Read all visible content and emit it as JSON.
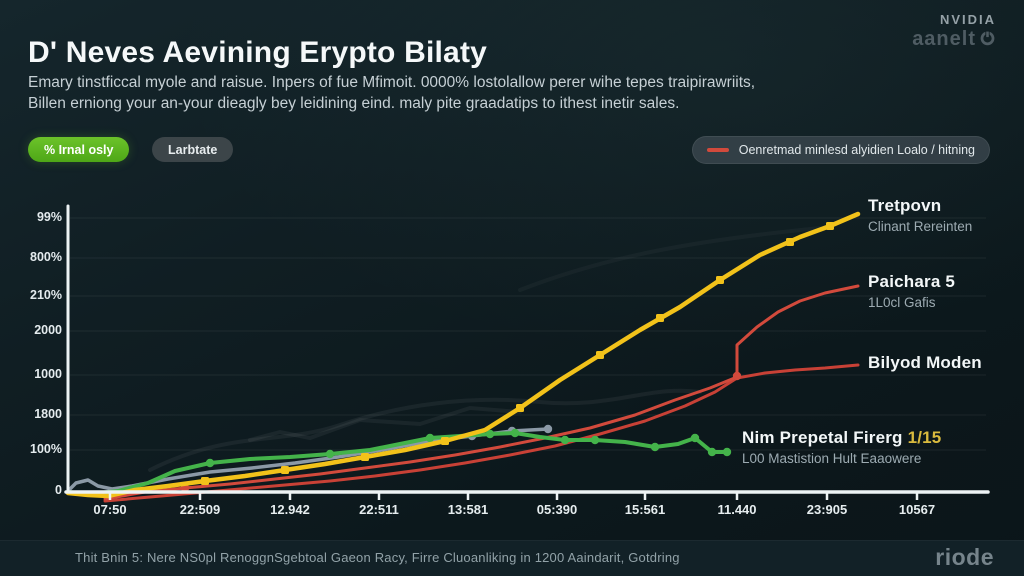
{
  "header": {
    "title": "D' Neves Aevining Erypto Bilaty",
    "subtitle_line1": "Emary tinstficcal myole and raisue. Inpers of fue Mfimoit. 0000% lostolallow perer wihe tepes traipirawriits,",
    "subtitle_line2": "Billen erniong your an-your dieagly bey leidining eind. maly pite graadatips to ithest inetir sales.",
    "brand_top": "NVIDIA",
    "brand_name": "aanelt"
  },
  "controls": {
    "primary_label": "% Irnal osly",
    "secondary_label": "Larbtate",
    "legend_label": "Oenretmad minlesd alyidien Loalo / hitning"
  },
  "colors": {
    "accent_green": "#5cb81f",
    "legend_red": "#d24a3c",
    "background": "#101e23"
  },
  "chart_data": {
    "type": "line",
    "grid": true,
    "legend_position": "top-right",
    "y_tick_labels": [
      "99%",
      "800%",
      "210%",
      "2000",
      "1000",
      "1800",
      "100%",
      "0"
    ],
    "x_tick_labels": [
      "07:50",
      "22:509",
      "12.942",
      "22:511",
      "13:581",
      "05:390",
      "15:561",
      "11.440",
      "23:905",
      "10567"
    ],
    "annotations": [
      {
        "title": "Tretpovn",
        "subtitle": "Clinant Rereinten"
      },
      {
        "title": "Paichara 5",
        "subtitle": "1L0cl Gafis"
      },
      {
        "title": "Bilyod Moden",
        "subtitle": ""
      },
      {
        "title": "Nim Prepetal Firerg",
        "badge": "1/15",
        "subtitle": "L00 Mastistion Hult Eaaowere"
      }
    ],
    "series": [
      {
        "id": "slate",
        "name": "unlabeled-gray-series",
        "color": "#8b99a6",
        "width": 3.5,
        "marker": "circle",
        "points": [
          [
            68,
            491
          ],
          [
            76,
            483
          ],
          [
            88,
            480
          ],
          [
            98,
            486
          ],
          [
            112,
            489
          ],
          [
            132,
            486
          ],
          [
            168,
            479
          ],
          [
            210,
            472
          ],
          [
            252,
            468
          ],
          [
            295,
            463
          ],
          [
            338,
            457
          ],
          [
            382,
            450
          ],
          [
            425,
            442
          ],
          [
            455,
            438
          ],
          [
            472,
            436
          ],
          [
            512,
            431
          ],
          [
            548,
            429
          ]
        ],
        "markers": [
          [
            472,
            436
          ],
          [
            512,
            431
          ],
          [
            548,
            429
          ]
        ]
      },
      {
        "id": "bilyod",
        "name": "Bilyod Moden",
        "color": "#c84136",
        "width": 3,
        "marker": "none",
        "points": [
          [
            105,
            501
          ],
          [
            150,
            497
          ],
          [
            195,
            493
          ],
          [
            240,
            489
          ],
          [
            285,
            485
          ],
          [
            330,
            481
          ],
          [
            375,
            476
          ],
          [
            420,
            470
          ],
          [
            465,
            463
          ],
          [
            510,
            455
          ],
          [
            555,
            446
          ],
          [
            600,
            434
          ],
          [
            645,
            421
          ],
          [
            685,
            406
          ],
          [
            715,
            392
          ],
          [
            737,
            378
          ],
          [
            765,
            373
          ],
          [
            795,
            370
          ],
          [
            825,
            368
          ],
          [
            858,
            365
          ]
        ],
        "markers": []
      },
      {
        "id": "paichara",
        "name": "Paichara 5",
        "color": "#d24a3c",
        "width": 3,
        "marker": "circle",
        "points": [
          [
            105,
            499
          ],
          [
            145,
            492
          ],
          [
            185,
            488
          ],
          [
            230,
            484
          ],
          [
            275,
            479
          ],
          [
            320,
            474
          ],
          [
            365,
            468
          ],
          [
            410,
            462
          ],
          [
            455,
            455
          ],
          [
            500,
            447
          ],
          [
            545,
            438
          ],
          [
            590,
            428
          ],
          [
            635,
            415
          ],
          [
            675,
            400
          ],
          [
            710,
            388
          ],
          [
            737,
            377
          ],
          [
            737,
            345
          ],
          [
            757,
            327
          ],
          [
            778,
            312
          ],
          [
            800,
            301
          ],
          [
            825,
            293
          ],
          [
            858,
            286
          ]
        ],
        "markers": [
          [
            185,
            488
          ],
          [
            737,
            376
          ]
        ]
      },
      {
        "id": "nim",
        "name": "Nim Prepetal Firerg",
        "color": "#44b34a",
        "width": 4,
        "marker": "circle",
        "points": [
          [
            68,
            492
          ],
          [
            90,
            494
          ],
          [
            118,
            491
          ],
          [
            148,
            483
          ],
          [
            175,
            471
          ],
          [
            210,
            463
          ],
          [
            250,
            459
          ],
          [
            290,
            457
          ],
          [
            330,
            454
          ],
          [
            370,
            450
          ],
          [
            400,
            444
          ],
          [
            430,
            438
          ],
          [
            460,
            436
          ],
          [
            490,
            434
          ],
          [
            515,
            433
          ],
          [
            540,
            437
          ],
          [
            565,
            440
          ],
          [
            595,
            440
          ],
          [
            625,
            442
          ],
          [
            655,
            447
          ],
          [
            678,
            444
          ],
          [
            695,
            438
          ],
          [
            712,
            452
          ],
          [
            727,
            452
          ]
        ],
        "markers": [
          [
            210,
            463
          ],
          [
            330,
            454
          ],
          [
            430,
            438
          ],
          [
            490,
            434
          ],
          [
            515,
            433
          ],
          [
            565,
            440
          ],
          [
            595,
            440
          ],
          [
            655,
            447
          ],
          [
            695,
            438
          ],
          [
            712,
            452
          ],
          [
            727,
            452
          ]
        ]
      },
      {
        "id": "tretpovn",
        "name": "Tretpovn",
        "color": "#f2c21a",
        "width": 4.5,
        "marker": "square",
        "points": [
          [
            68,
            493
          ],
          [
            88,
            495
          ],
          [
            108,
            496
          ],
          [
            135,
            490
          ],
          [
            168,
            486
          ],
          [
            205,
            481
          ],
          [
            245,
            476
          ],
          [
            285,
            470
          ],
          [
            325,
            464
          ],
          [
            365,
            457
          ],
          [
            405,
            450
          ],
          [
            445,
            441
          ],
          [
            485,
            430
          ],
          [
            520,
            408
          ],
          [
            560,
            380
          ],
          [
            600,
            355
          ],
          [
            640,
            330
          ],
          [
            680,
            307
          ],
          [
            720,
            280
          ],
          [
            760,
            255
          ],
          [
            800,
            237
          ],
          [
            830,
            226
          ],
          [
            858,
            214
          ]
        ],
        "markers": [
          [
            205,
            481
          ],
          [
            285,
            470
          ],
          [
            365,
            457
          ],
          [
            445,
            441
          ],
          [
            520,
            408
          ],
          [
            600,
            355
          ],
          [
            660,
            318
          ],
          [
            720,
            280
          ],
          [
            790,
            242
          ],
          [
            830,
            226
          ]
        ]
      }
    ]
  },
  "footer": {
    "note": "Thit Bnin 5: Nere NS0pl RenoggnSgebtoal Gaeon Racy, Firre Cluoanliking in 1200 Aaindarit, Gotdring",
    "logo": "riode"
  }
}
